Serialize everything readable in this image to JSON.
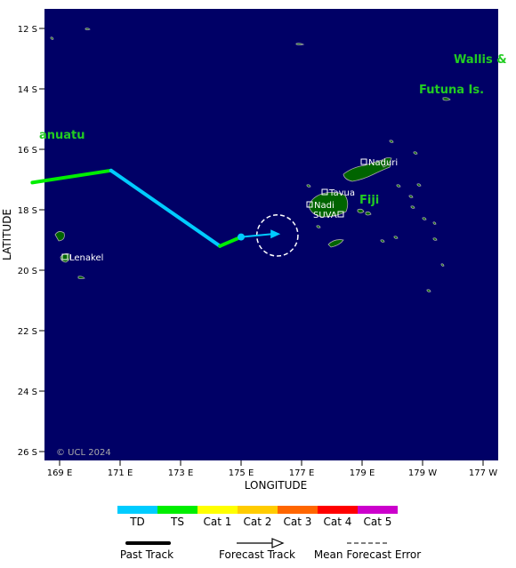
{
  "map": {
    "background": "#000066",
    "land_color": "#006400",
    "land_outline": "#aaaaaa",
    "lat_ticks": [
      "12 S",
      "14 S",
      "16 S",
      "18 S",
      "20 S",
      "22 S",
      "24 S",
      "26 S"
    ],
    "lon_ticks": [
      "169 E",
      "171 E",
      "173 E",
      "175 E",
      "177 E",
      "179 E",
      "179 W",
      "177 W"
    ],
    "xlabel": "LONGITUDE",
    "ylabel": "LATITUDE",
    "copyright": "© UCL 2024",
    "regions": {
      "wallis": "Wallis &",
      "futuna": "Futuna Is.",
      "vanuatu": "anuatu",
      "fiji": "Fiji"
    },
    "places": {
      "naduri": "Naduri",
      "tavua": "Tavua",
      "nadi": "Nadi",
      "suva": "SUVA",
      "lenakel": "Lenakel"
    },
    "track": {
      "past_segments": [
        {
          "category": "TS",
          "color": "#00ee00",
          "from": [
            168.1,
            -17.1
          ],
          "to": [
            170.7,
            -16.7
          ]
        },
        {
          "category": "TD",
          "color": "#00ccff",
          "from": [
            170.7,
            -16.7
          ],
          "to": [
            174.3,
            -19.2
          ]
        },
        {
          "category": "TS",
          "color": "#00ee00",
          "from": [
            174.3,
            -19.2
          ],
          "to": [
            175.0,
            -18.9
          ]
        }
      ],
      "current_position": [
        175.0,
        -18.9
      ],
      "forecast_end": [
        176.3,
        -18.8
      ],
      "forecast_color": "#00ccff",
      "error_circle_center": [
        176.2,
        -18.85
      ],
      "error_circle_radius_deg": 0.68
    }
  },
  "legend": {
    "categories": [
      {
        "label": "TD",
        "color": "#00ccff"
      },
      {
        "label": "TS",
        "color": "#00ee00"
      },
      {
        "label": "Cat 1",
        "color": "#ffff00"
      },
      {
        "label": "Cat 2",
        "color": "#ffcc00"
      },
      {
        "label": "Cat 3",
        "color": "#ff6600"
      },
      {
        "label": "Cat 4",
        "color": "#ff0000"
      },
      {
        "label": "Cat 5",
        "color": "#cc00cc"
      }
    ],
    "past_track": "Past Track",
    "forecast_track": "Forecast Track",
    "mean_error": "Mean Forecast Error"
  }
}
